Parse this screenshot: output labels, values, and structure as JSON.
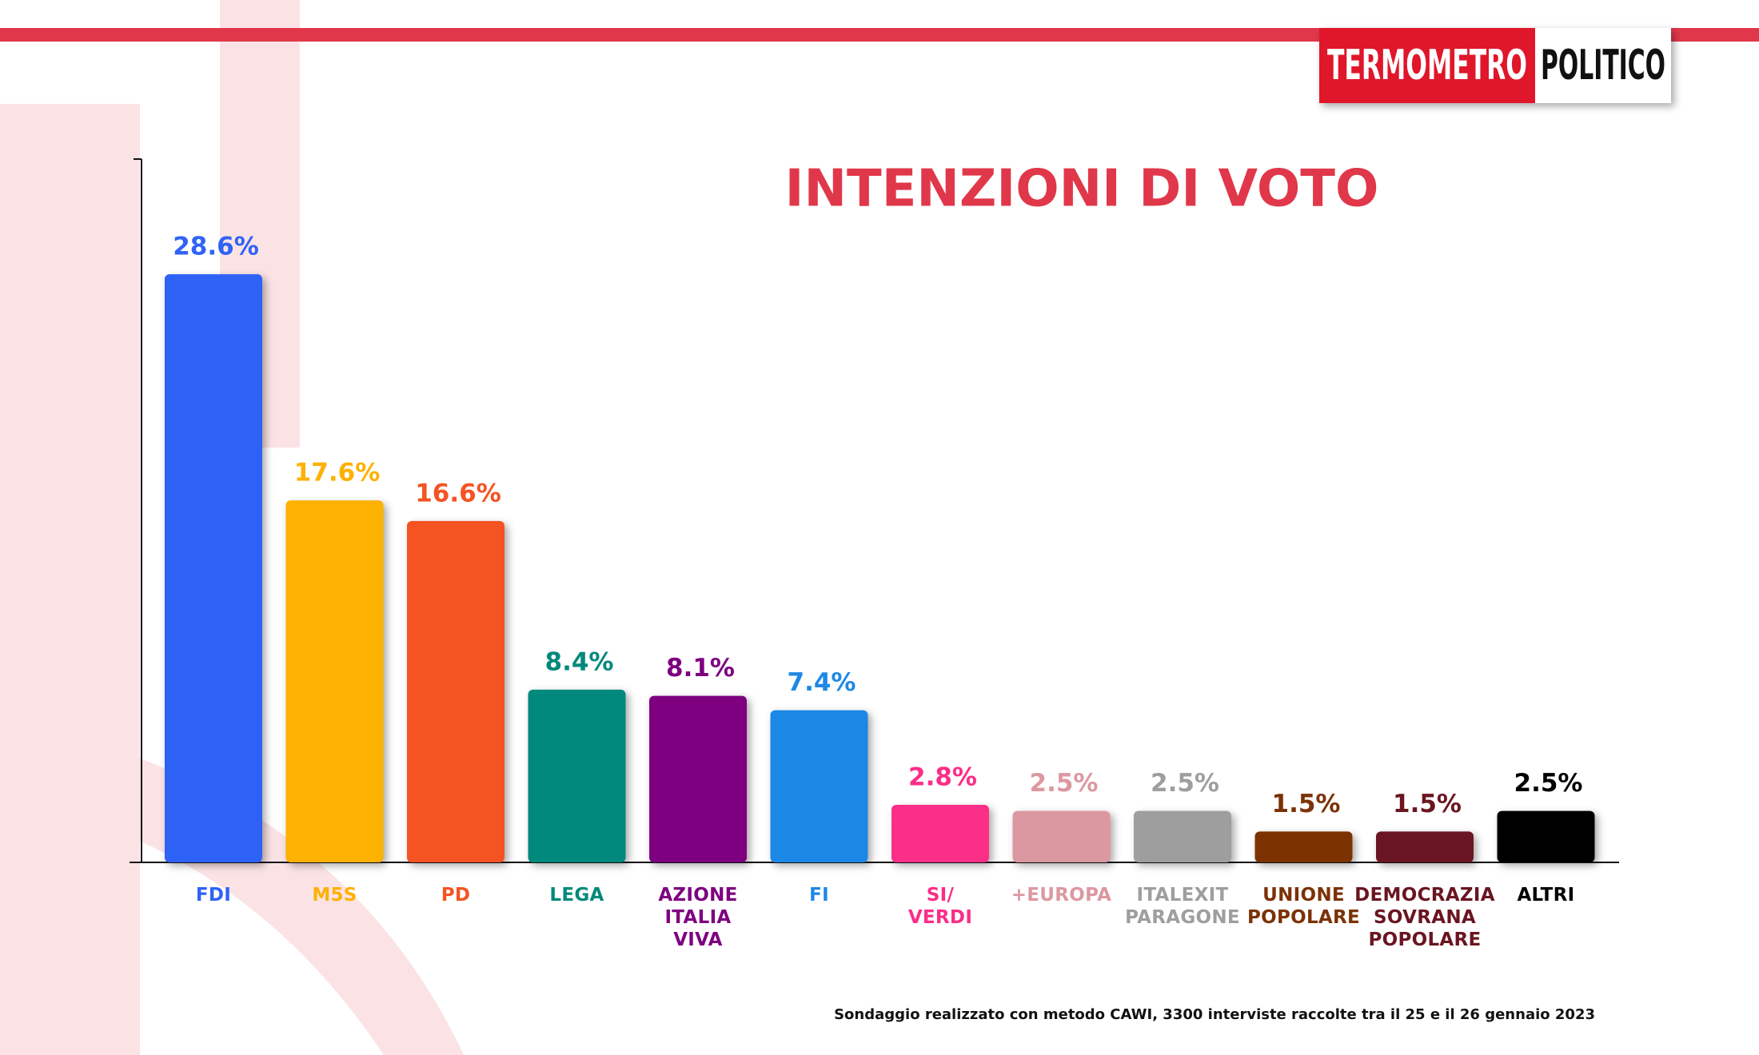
{
  "logo": {
    "left": "TERMOMETRO",
    "right": "POLITICO"
  },
  "chart_data": {
    "type": "bar",
    "title": "INTENZIONI DI VOTO",
    "categories": [
      "FDI",
      "M5S",
      "PD",
      "LEGA",
      "AZIONE\nITALIA\nVIVA",
      "FI",
      "SI/\nVERDI",
      "+EUROPA",
      "ITALEXIT\nPARAGONE",
      "UNIONE\nPOPOLARE",
      "DEMOCRAZIA\nSOVRANA\nPOPOLARE",
      "ALTRI"
    ],
    "values": [
      28.6,
      17.6,
      16.6,
      8.4,
      8.1,
      7.4,
      2.8,
      2.5,
      2.5,
      1.5,
      1.5,
      2.5
    ],
    "value_labels": [
      "28.6%",
      "17.6%",
      "16.6%",
      "8.4%",
      "8.1%",
      "7.4%",
      "2.8%",
      "2.5%",
      "2.5%",
      "1.5%",
      "1.5%",
      "2.5%"
    ],
    "colors": [
      "#2f62f7",
      "#fdb100",
      "#f45322",
      "#00897b",
      "#7e0080",
      "#1e88e5",
      "#fb2d88",
      "#dc98a0",
      "#9e9e9e",
      "#7b3206",
      "#6a1520",
      "#000000"
    ],
    "ylim": [
      0,
      34.2
    ],
    "note": "Sondaggio realizzato con metodo CAWI, 3300 interviste raccolte tra il 25 e il 26 gennaio 2023"
  }
}
